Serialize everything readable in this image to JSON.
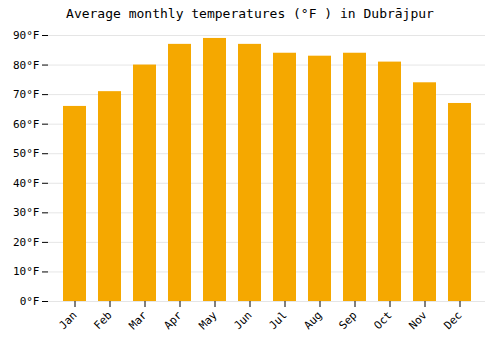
{
  "chart_data": {
    "type": "bar",
    "title": "Average monthly temperatures (°F ) in Dubrājpur",
    "categories": [
      "Jan",
      "Feb",
      "Mar",
      "Apr",
      "May",
      "Jun",
      "Jul",
      "Aug",
      "Sep",
      "Oct",
      "Nov",
      "Dec"
    ],
    "values": [
      66,
      71,
      80,
      87,
      89,
      87,
      84,
      83,
      84,
      81,
      74,
      67
    ],
    "color": "#F5A800",
    "ylim": [
      0,
      90
    ],
    "yticks": [
      {
        "value": 0,
        "label": "0°F"
      },
      {
        "value": 10,
        "label": "10°F"
      },
      {
        "value": 20,
        "label": "20°F"
      },
      {
        "value": 30,
        "label": "30°F"
      },
      {
        "value": 40,
        "label": "40°F"
      },
      {
        "value": 50,
        "label": "50°F"
      },
      {
        "value": 60,
        "label": "60°F"
      },
      {
        "value": 70,
        "label": "70°F"
      },
      {
        "value": 80,
        "label": "80°F"
      },
      {
        "value": 90,
        "label": "90°F"
      }
    ],
    "grid": true
  }
}
